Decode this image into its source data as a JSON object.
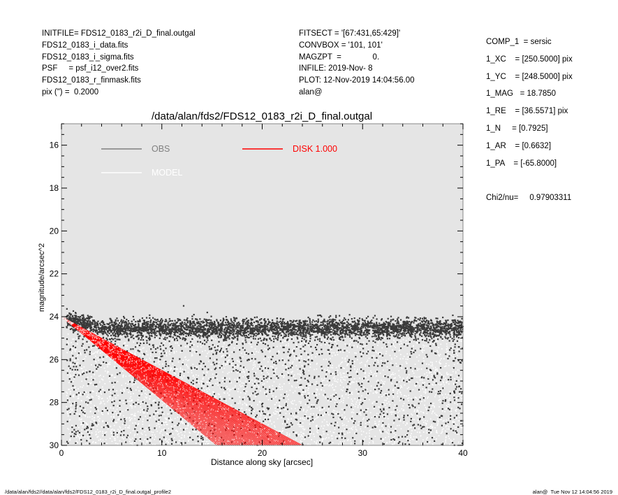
{
  "header": {
    "left": [
      "INITFILE= FDS12_0183_r2i_D_final.outgal",
      "FDS12_0183_i_data.fits",
      "FDS12_0183_i_sigma.fits",
      "PSF     = psf_i12_over2.fits",
      "FDS12_0183_r_finmask.fits",
      "pix (\") =  0.2000"
    ],
    "middle": [
      "FITSECT = '[67:431,65:429]'",
      "CONVBOX = '101, 101'",
      "MAGZPT  =              0.",
      "INFILE: 2019-Nov- 8",
      "PLOT: 12-Nov-2019 14:04:56.00",
      "alan@"
    ],
    "right": [
      "COMP_1  = sersic",
      "1_XC    = [250.5000] pix",
      "1_YC    = [248.5000] pix",
      "1_MAG   = 18.7850",
      "1_RE    = [36.5571] pix",
      "1_N     = [0.7925]",
      "1_AR    = [0.6632]",
      "1_PA    = [-65.8000]",
      "",
      "Chi2/nu=     0.97903311"
    ]
  },
  "footer": {
    "left": "/data/alan/fds2//data/alan/fds2/FDS12_0183_r2i_D_final.outgal_profile2",
    "right": "alan@  Tue Nov 12 14:04:56 2019"
  },
  "chart_data": {
    "type": "scatter",
    "title": "/data/alan/fds2/FDS12_0183_r2i_D_final.outgal",
    "xlabel": "Distance along sky [arcsec]",
    "ylabel": "magnitude/arcsec^2",
    "xlim": [
      0,
      40
    ],
    "ylim": [
      30,
      15
    ],
    "y_inverted": true,
    "x_ticks": [
      0,
      10,
      20,
      30,
      40
    ],
    "y_ticks": [
      16,
      18,
      20,
      22,
      24,
      26,
      28,
      30
    ],
    "background": "#e5e5e5",
    "legend": [
      {
        "label": "OBS",
        "color": "#808080"
      },
      {
        "label": "MODEL",
        "color": "#ffffff"
      },
      {
        "label": "DISK  1.000",
        "color": "#ff0000"
      }
    ],
    "series": [
      {
        "name": "OBS",
        "color": "#3a3a3a",
        "description_points": {
          "dense_band": {
            "x_range": [
              0.5,
              40
            ],
            "y_center": 24.6,
            "y_spread": 0.4
          },
          "scatter_region": {
            "x_range": [
              0.5,
              40
            ],
            "y_range": [
              24.2,
              30
            ]
          }
        }
      },
      {
        "name": "MODEL",
        "color": "#ffffff",
        "description_points": {
          "x_range": [
            0.5,
            40
          ],
          "y_range": [
            24.5,
            30
          ]
        }
      },
      {
        "name": "DISK  1.000",
        "color": "#ff0000",
        "start": [
          0,
          24.0
        ],
        "upper_edge_end": [
          24,
          30
        ],
        "lower_edge_end": [
          15.5,
          30
        ]
      }
    ]
  }
}
